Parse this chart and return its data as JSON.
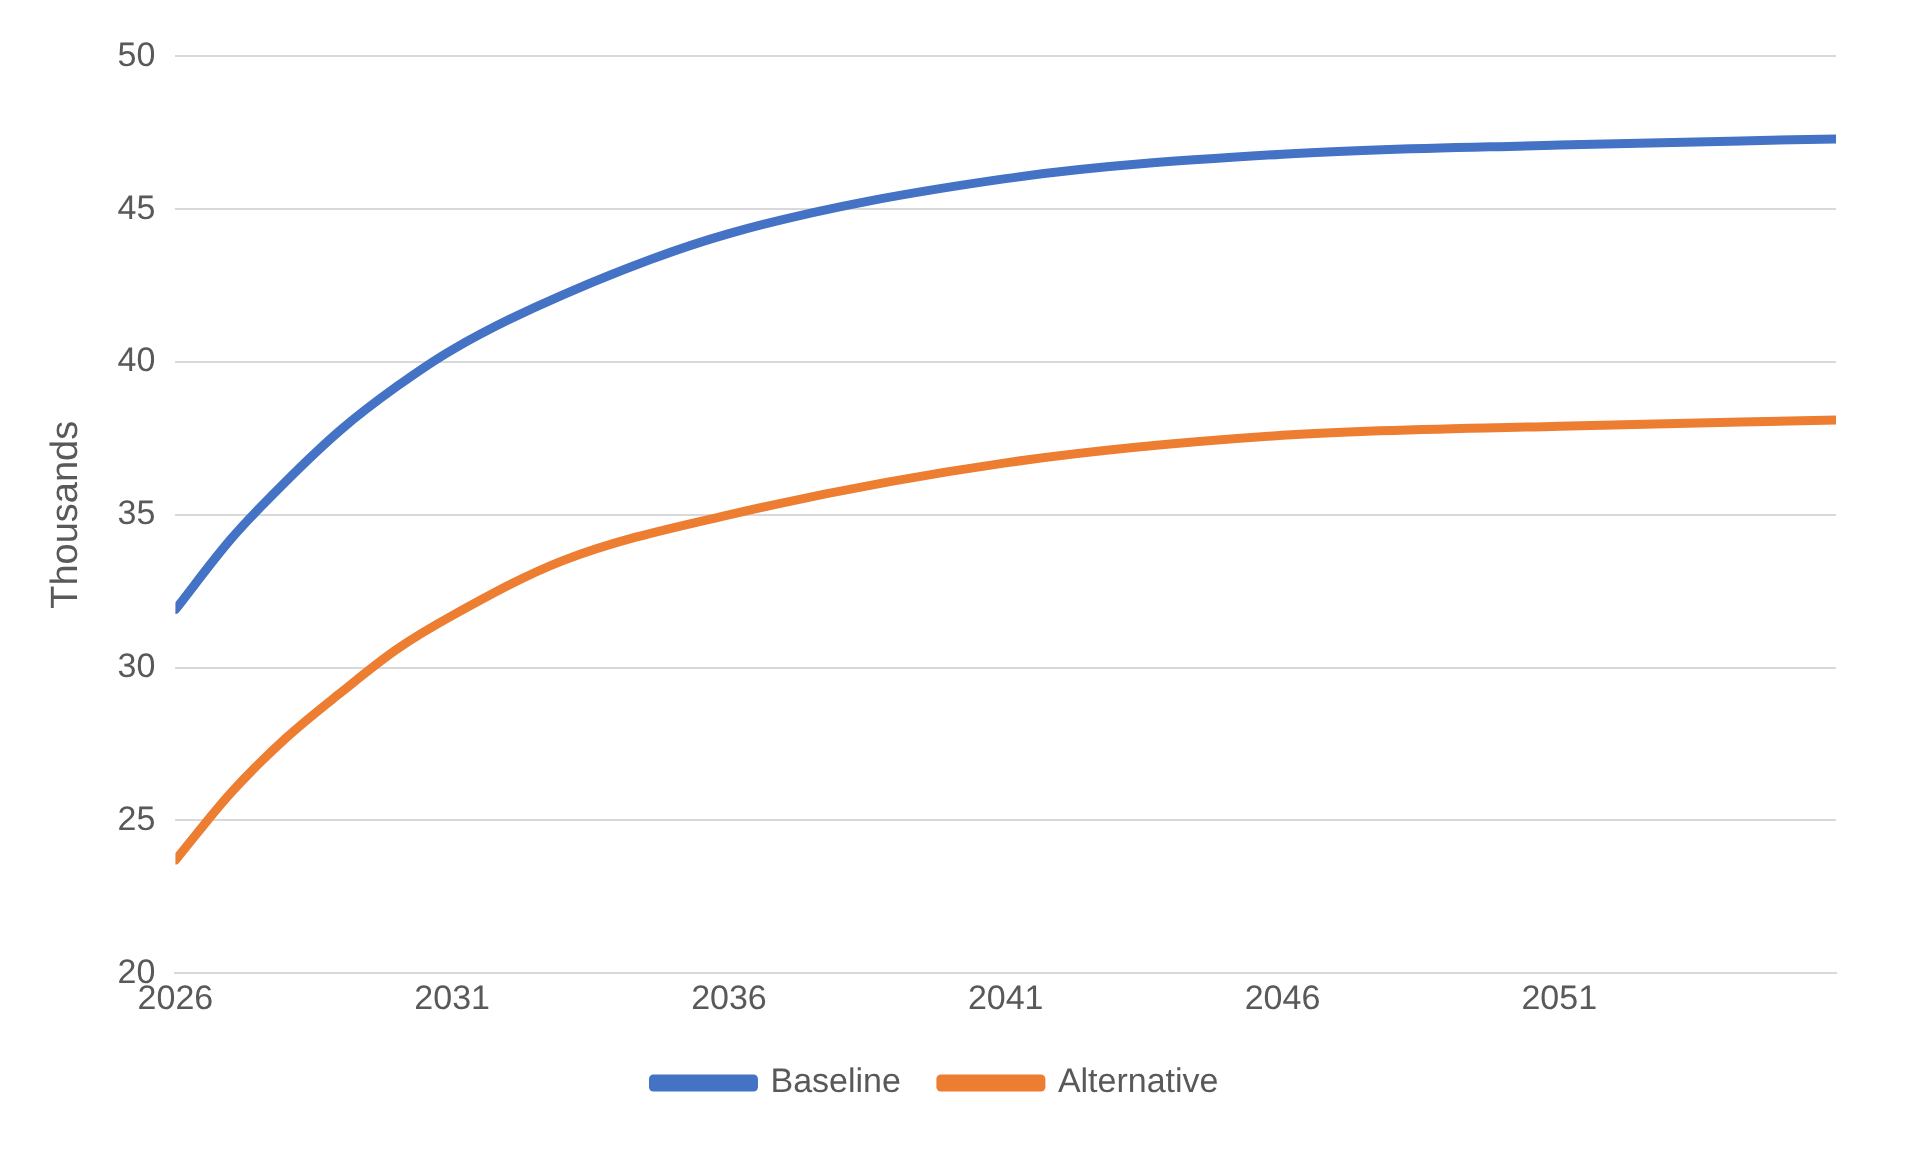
{
  "chart_data": {
    "type": "line",
    "ylabel": "Thousands",
    "x": [
      2026,
      2027,
      2028,
      2029,
      2030,
      2031,
      2033,
      2036,
      2041,
      2046,
      2051,
      2056
    ],
    "series": [
      {
        "name": "Baseline",
        "color": "#4472c4",
        "values": [
          31.9,
          34.2,
          36.1,
          37.8,
          39.2,
          40.4,
          42.2,
          44.2,
          46.0,
          46.8,
          47.1,
          47.3
        ]
      },
      {
        "name": "Alternative",
        "color": "#ed7d31",
        "values": [
          23.7,
          25.9,
          27.7,
          29.2,
          30.6,
          31.7,
          33.5,
          35.0,
          36.7,
          37.6,
          37.9,
          38.1
        ]
      }
    ],
    "xlim": [
      2026,
      2056
    ],
    "xticks": [
      2026,
      2031,
      2036,
      2041,
      2046,
      2051
    ],
    "ylim": [
      20,
      50
    ],
    "yticks": [
      20,
      25,
      30,
      35,
      40,
      45,
      50
    ],
    "grid": "y",
    "legend": "bottom",
    "marker": "none",
    "line_style": "solid"
  }
}
